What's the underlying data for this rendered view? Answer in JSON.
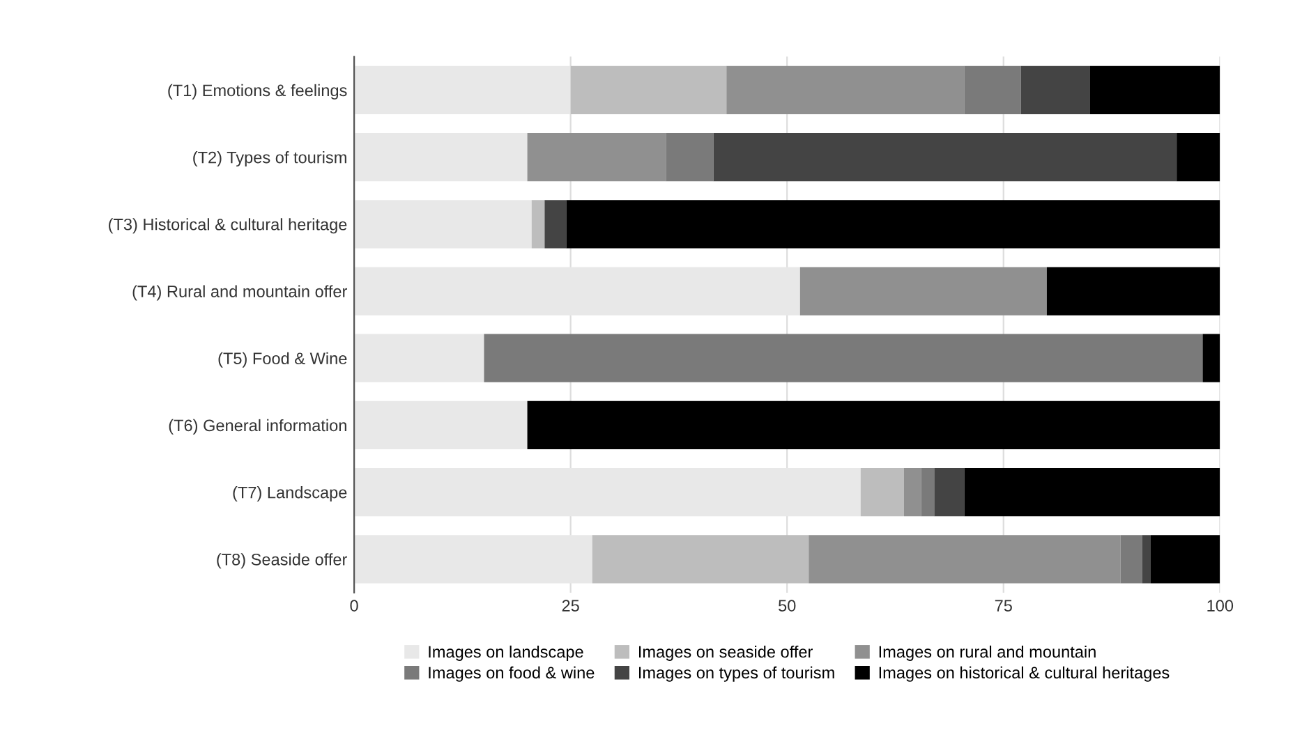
{
  "chart_data": {
    "type": "bar",
    "orientation": "horizontal",
    "stacked": true,
    "categories": [
      "(T1) Emotions & feelings",
      "(T2) Types of tourism",
      "(T3) Historical & cultural heritage",
      "(T4) Rural and mountain offer",
      "(T5) Food & Wine",
      "(T6) General information",
      "(T7) Landscape",
      "(T8) Seaside offer"
    ],
    "series": [
      {
        "name": "Images on landscape",
        "color": "#e8e8e8",
        "values": [
          25,
          20,
          20.5,
          51.5,
          15,
          20,
          58.5,
          27.5
        ]
      },
      {
        "name": "Images on seaside offer",
        "color": "#bdbdbd",
        "values": [
          18,
          0,
          1.5,
          0,
          0,
          0,
          5,
          25
        ]
      },
      {
        "name": "Images on rural and mountain",
        "color": "#909090",
        "values": [
          27.5,
          16,
          0,
          28.5,
          0,
          0,
          2,
          36
        ]
      },
      {
        "name": "Images on food & wine",
        "color": "#7a7a7a",
        "values": [
          6.5,
          5.5,
          0,
          0,
          83,
          0,
          1.5,
          2.5
        ]
      },
      {
        "name": "Images on types of tourism",
        "color": "#444444",
        "values": [
          8,
          53.5,
          2.5,
          0,
          0,
          0,
          3.5,
          1
        ]
      },
      {
        "name": "Images on historical & cultural heritages",
        "color": "#000000",
        "values": [
          15,
          5,
          75.5,
          20,
          2,
          80,
          29.5,
          8
        ]
      }
    ],
    "xlim": [
      0,
      100
    ],
    "xticks": [
      0,
      25,
      50,
      75,
      100
    ],
    "grid": "x",
    "legend": "bottom"
  }
}
